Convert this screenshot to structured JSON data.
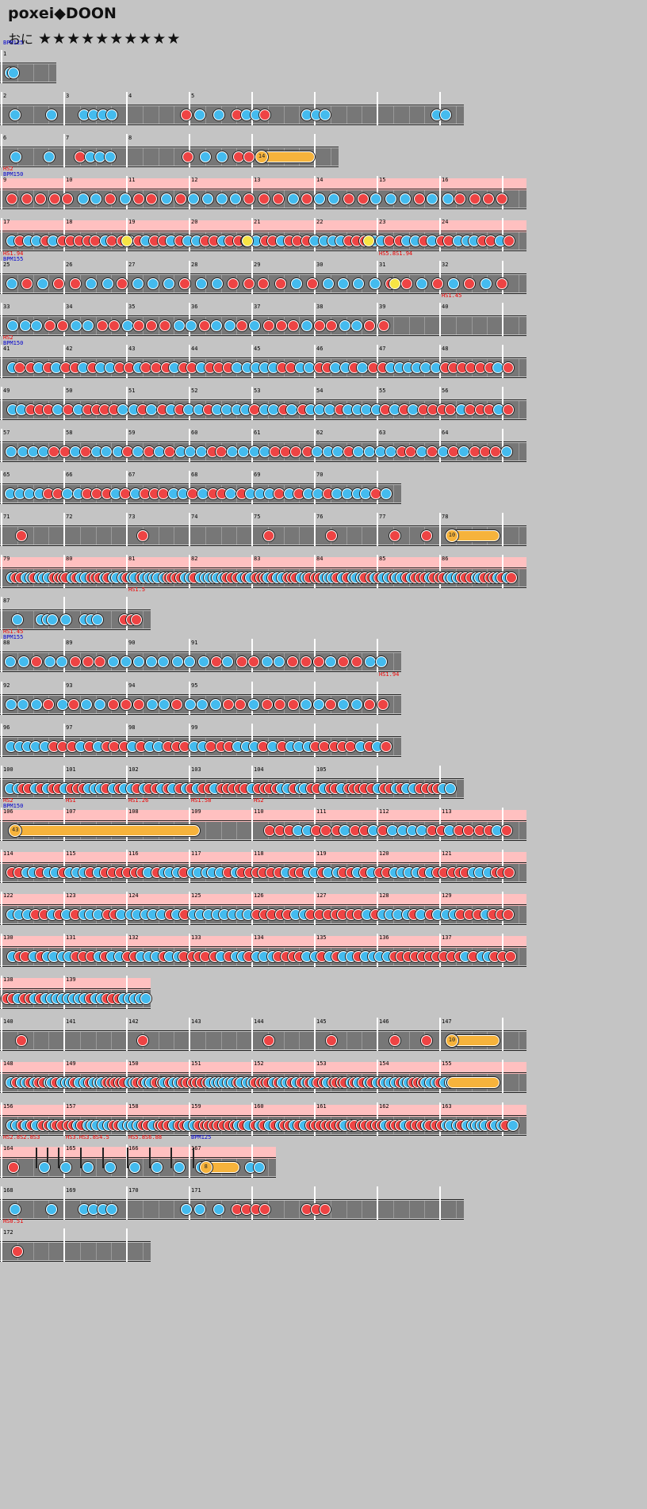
{
  "title": "poxei◆DOON",
  "difficulty": {
    "label": "おに",
    "stars": "★★★★★★★★★★"
  },
  "rows": [
    {
      "bars": 1,
      "measures": [
        "1"
      ],
      "tags": [
        {
          "type": "bpm",
          "text": "BPM125",
          "bar": 0
        }
      ],
      "hs": false,
      "notes": [
        [
          0.08,
          "k",
          0
        ],
        [
          0.14,
          "k",
          0
        ]
      ]
    },
    {
      "bars": 7.5,
      "measures": [
        "2",
        "3",
        "4",
        "5"
      ],
      "tags": [],
      "hs": false,
      "notes": [
        [
          0.02,
          "k",
          0
        ],
        [
          0.1,
          "k",
          0
        ],
        [
          0.17,
          "k",
          0
        ],
        [
          0.19,
          "k",
          0
        ],
        [
          0.21,
          "k",
          0
        ],
        [
          0.23,
          "k",
          0
        ],
        [
          0.39,
          "d",
          0
        ],
        [
          0.42,
          "k",
          0
        ],
        [
          0.46,
          "k",
          0
        ],
        [
          0.5,
          "d",
          0
        ],
        [
          0.52,
          "k",
          0
        ],
        [
          0.54,
          "k",
          0
        ],
        [
          0.56,
          "d",
          0
        ],
        [
          0.65,
          "k",
          0
        ],
        [
          0.67,
          "k",
          0
        ],
        [
          0.69,
          "k",
          0
        ],
        [
          0.93,
          "k",
          0
        ],
        [
          0.95,
          "k",
          0
        ]
      ]
    },
    {
      "bars": 5.5,
      "measures": [
        "6",
        "7",
        "8"
      ],
      "tags": [],
      "hs": false,
      "notes": [
        [
          0.03,
          "k",
          0
        ],
        [
          0.13,
          "k",
          0
        ],
        [
          0.22,
          "d",
          0
        ],
        [
          0.25,
          "k",
          0
        ],
        [
          0.28,
          "k",
          0
        ],
        [
          0.31,
          "k",
          0
        ],
        [
          0.54,
          "d",
          0
        ],
        [
          0.59,
          "k",
          0
        ],
        [
          0.64,
          "k",
          0
        ],
        [
          0.69,
          "d",
          0
        ],
        [
          0.72,
          "d",
          0
        ]
      ],
      "rolls": [
        [
          0.76,
          0.93,
          "14",
          "orange"
        ]
      ]
    },
    {
      "bars": 8.5,
      "measures": [
        "9",
        "10",
        "11",
        "12",
        "13",
        "14",
        "15",
        "16"
      ],
      "tags": [
        {
          "type": "hs",
          "text": "HS2",
          "bar": 0
        },
        {
          "type": "bpm",
          "text": "BPM150",
          "bar": 0
        }
      ],
      "hs": true,
      "density": 36,
      "seed": 3
    },
    {
      "bars": 8.5,
      "measures": [
        "17",
        "18",
        "19",
        "20",
        "21",
        "22",
        "23",
        "24"
      ],
      "tags": [],
      "hs": true,
      "density": 60,
      "seed": 7,
      "rolls": [
        [
          0.23,
          0.25,
          "",
          "yellow"
        ],
        [
          0.46,
          0.48,
          "",
          "yellow"
        ],
        [
          0.69,
          0.71,
          "",
          "yellow"
        ]
      ]
    },
    {
      "bars": 8.5,
      "measures": [
        "25",
        "26",
        "27",
        "28",
        "29",
        "30",
        "31",
        "32"
      ],
      "tags": [
        {
          "type": "hs",
          "text": "HS1.94",
          "bar": 0
        },
        {
          "type": "bpm",
          "text": "BPM155",
          "bar": 0
        },
        {
          "type": "hs",
          "text": "HS5.8S1.94",
          "bar": 6
        }
      ],
      "hs": false,
      "density": 32,
      "seed": 11,
      "rolls": [
        [
          0.74,
          0.76,
          "",
          "yellow"
        ]
      ]
    },
    {
      "bars": 8.5,
      "measures": [
        "33",
        "34",
        "35",
        "36",
        "37",
        "38",
        "39",
        "40"
      ],
      "tags": [
        {
          "type": "hs",
          "text": "HS1.45",
          "bar": 7
        }
      ],
      "hs": false,
      "density": 30,
      "seed": 13,
      "emptyFrom": 0.74
    },
    {
      "bars": 8.5,
      "measures": [
        "41",
        "42",
        "43",
        "44",
        "45",
        "46",
        "47",
        "48"
      ],
      "tags": [
        {
          "type": "hs",
          "text": "HS2",
          "bar": 0
        },
        {
          "type": "bpm",
          "text": "BPM150",
          "bar": 0
        }
      ],
      "hs": false,
      "density": 56,
      "seed": 17
    },
    {
      "bars": 8.5,
      "measures": [
        "49",
        "50",
        "51",
        "52",
        "53",
        "54",
        "55",
        "56"
      ],
      "tags": [],
      "hs": false,
      "density": 54,
      "seed": 19
    },
    {
      "bars": 8.5,
      "measures": [
        "57",
        "58",
        "59",
        "60",
        "61",
        "62",
        "63",
        "64"
      ],
      "tags": [],
      "hs": false,
      "density": 48,
      "seed": 23
    },
    {
      "bars": 6.5,
      "measures": [
        "65",
        "66",
        "67",
        "68",
        "69",
        "70"
      ],
      "tags": [],
      "hs": false,
      "density": 40,
      "seed": 29
    },
    {
      "bars": 8.5,
      "measures": [
        "71",
        "72",
        "73",
        "74",
        "75",
        "76",
        "77",
        "78"
      ],
      "tags": [],
      "hs": false,
      "notes": [
        [
          0.03,
          "d",
          0
        ],
        [
          0.26,
          "d",
          0
        ],
        [
          0.5,
          "d",
          0
        ],
        [
          0.62,
          "d",
          0
        ],
        [
          0.74,
          "d",
          0
        ],
        [
          0.8,
          "d",
          0
        ]
      ],
      "rolls": [
        [
          0.85,
          0.95,
          "10",
          "orange"
        ]
      ]
    },
    {
      "bars": 8.5,
      "measures": [
        "79",
        "80",
        "81",
        "82",
        "83",
        "84",
        "85",
        "86"
      ],
      "tags": [],
      "hs": true,
      "density": 110,
      "seed": 31
    },
    {
      "bars": 2.5,
      "measures": [
        "87"
      ],
      "tags": [
        {
          "type": "hs",
          "text": "HS1.5",
          "bar": 2
        }
      ],
      "hs": false,
      "notes": [
        [
          0.08,
          "k",
          0
        ],
        [
          0.24,
          "k",
          0
        ],
        [
          0.28,
          "k",
          0
        ],
        [
          0.31,
          "k",
          0
        ],
        [
          0.4,
          "k",
          0
        ],
        [
          0.53,
          "k",
          0
        ],
        [
          0.57,
          "k",
          0
        ],
        [
          0.61,
          "k",
          0
        ],
        [
          0.79,
          "d",
          0
        ],
        [
          0.84,
          "d",
          0
        ],
        [
          0.87,
          "d",
          0
        ]
      ]
    },
    {
      "bars": 6.5,
      "measures": [
        "88",
        "89",
        "90",
        "91"
      ],
      "tags": [
        {
          "type": "hs",
          "text": "HS1.45",
          "bar": 0
        },
        {
          "type": "bpm",
          "text": "BPM155",
          "bar": 0
        }
      ],
      "hs": false,
      "density": 30,
      "seed": 37
    },
    {
      "bars": 6.5,
      "measures": [
        "92",
        "93",
        "94",
        "95"
      ],
      "tags": [
        {
          "type": "hs",
          "text": "HS1.94",
          "bar": 6
        }
      ],
      "hs": false,
      "density": 30,
      "seed": 41
    },
    {
      "bars": 6.5,
      "measures": [
        "96",
        "97",
        "98",
        "99"
      ],
      "tags": [],
      "hs": false,
      "density": 44,
      "seed": 43
    },
    {
      "bars": 7.5,
      "measures": [
        "100",
        "101",
        "102",
        "103",
        "104",
        "105"
      ],
      "tags": [],
      "hs": false,
      "density": 74,
      "seed": 47
    },
    {
      "bars": 8.5,
      "measures": [
        "106",
        "107",
        "108",
        "109",
        "110",
        "111",
        "112",
        "113"
      ],
      "tags": [
        {
          "type": "hs",
          "text": "HS2",
          "bar": 0
        },
        {
          "type": "bpm",
          "text": "BPM150",
          "bar": 0
        },
        {
          "type": "hs",
          "text": "HS1",
          "bar": 1
        },
        {
          "type": "hs",
          "text": "HS1.26",
          "bar": 2
        },
        {
          "type": "hs",
          "text": "HS1.58",
          "bar": 3
        },
        {
          "type": "hs",
          "text": "HS2",
          "bar": 4
        }
      ],
      "hs": true,
      "density": 26,
      "seed": 53,
      "startFrom": 0.5,
      "rolls": [
        [
          0.02,
          0.38,
          "43",
          "orange"
        ]
      ]
    },
    {
      "bars": 8.5,
      "measures": [
        "114",
        "115",
        "116",
        "117",
        "118",
        "119",
        "120",
        "121"
      ],
      "tags": [],
      "hs": true,
      "density": 70,
      "seed": 59
    },
    {
      "bars": 8.5,
      "measures": [
        "122",
        "123",
        "124",
        "125",
        "126",
        "127",
        "128",
        "129"
      ],
      "tags": [],
      "hs": true,
      "density": 64,
      "seed": 61
    },
    {
      "bars": 8.5,
      "measures": [
        "130",
        "131",
        "132",
        "133",
        "134",
        "135",
        "136",
        "137"
      ],
      "tags": [],
      "hs": true,
      "density": 70,
      "seed": 67
    },
    {
      "bars": 2.5,
      "measures": [
        "138",
        "139"
      ],
      "tags": [],
      "hs": true,
      "density": 26,
      "seed": 71
    },
    {
      "bars": 8.5,
      "measures": [
        "140",
        "141",
        "142",
        "143",
        "144",
        "145",
        "146",
        "147"
      ],
      "tags": [],
      "hs": false,
      "notes": [
        [
          0.03,
          "d",
          0
        ],
        [
          0.26,
          "d",
          0
        ],
        [
          0.5,
          "d",
          0
        ],
        [
          0.62,
          "d",
          0
        ],
        [
          0.74,
          "d",
          0
        ],
        [
          0.8,
          "d",
          0
        ]
      ],
      "rolls": [
        [
          0.85,
          0.95,
          "10",
          "orange"
        ]
      ]
    },
    {
      "bars": 8.5,
      "measures": [
        "148",
        "149",
        "150",
        "151",
        "152",
        "153",
        "154",
        "155"
      ],
      "tags": [],
      "hs": true,
      "density": 98,
      "seed": 73,
      "endAt": 0.85,
      "rolls": [
        [
          0.85,
          0.95,
          "",
          "orange"
        ]
      ]
    },
    {
      "bars": 8.5,
      "measures": [
        "156",
        "157",
        "158",
        "159",
        "160",
        "161",
        "162",
        "163"
      ],
      "tags": [],
      "hs": true,
      "density": 100,
      "seed": 79
    },
    {
      "bars": 4.5,
      "measures": [
        "164",
        "165",
        "166",
        "167"
      ],
      "tags": [
        {
          "type": "hs",
          "text": "HS2.8S2.8S3",
          "bar": 0
        },
        {
          "type": "hs",
          "text": "HS3.HS3.8S4.5",
          "bar": 1
        },
        {
          "type": "hs",
          "text": "HS5.8S6.88",
          "bar": 2
        },
        {
          "type": "bpm",
          "text": "BPM125",
          "bar": 3
        }
      ],
      "hs": true,
      "notes": [
        [
          0.03,
          "d",
          0
        ],
        [
          0.14,
          "k",
          0
        ],
        [
          0.22,
          "k",
          0
        ],
        [
          0.3,
          "k",
          0
        ],
        [
          0.38,
          "k",
          0
        ],
        [
          0.47,
          "k",
          0
        ],
        [
          0.55,
          "k",
          0
        ],
        [
          0.63,
          "k",
          0
        ],
        [
          0.71,
          "k",
          0
        ],
        [
          0.89,
          "k",
          0
        ],
        [
          0.92,
          "k",
          0
        ]
      ],
      "rolls": [
        [
          0.73,
          0.87,
          "8",
          "orange"
        ]
      ],
      "hsLines": [
        0.13,
        0.17,
        0.21,
        0.29,
        0.37,
        0.46,
        0.54,
        0.62,
        0.7
      ]
    },
    {
      "bars": 7.5,
      "measures": [
        "168",
        "169",
        "170",
        "171"
      ],
      "tags": [],
      "hs": false,
      "notes": [
        [
          0.02,
          "k",
          0
        ],
        [
          0.1,
          "k",
          0
        ],
        [
          0.17,
          "k",
          0
        ],
        [
          0.19,
          "k",
          0
        ],
        [
          0.21,
          "k",
          0
        ],
        [
          0.23,
          "k",
          0
        ],
        [
          0.39,
          "k",
          0
        ],
        [
          0.42,
          "k",
          0
        ],
        [
          0.46,
          "k",
          0
        ],
        [
          0.5,
          "d",
          0
        ],
        [
          0.52,
          "d",
          0
        ],
        [
          0.54,
          "d",
          0
        ],
        [
          0.56,
          "d",
          0
        ],
        [
          0.65,
          "d",
          0
        ],
        [
          0.67,
          "d",
          0
        ],
        [
          0.69,
          "d",
          0
        ]
      ]
    },
    {
      "bars": 2.5,
      "measures": [
        "172"
      ],
      "tags": [
        {
          "type": "hs",
          "text": "HS0.51",
          "bar": 0
        }
      ],
      "hs": false,
      "notes": [
        [
          0.08,
          "d",
          0
        ]
      ]
    }
  ]
}
